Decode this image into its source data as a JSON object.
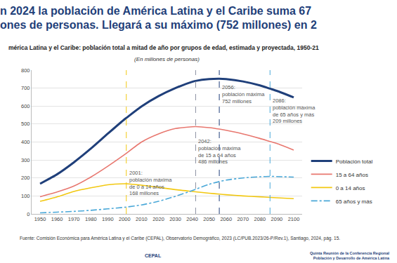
{
  "chart_data": {
    "type": "line",
    "title": [
      "n 2024 la población de América Latina y el Caribe suma 67",
      "ones de personas. Llegará a su máximo (752 millones) en 2"
    ],
    "subtitle": "mérica Latina y el Caribe: población total a mitad de año por grupos de edad, estimada y proyectada, 1950-21",
    "unit_note": "(En millones de personas)",
    "source": "Fuente: Comisión Económica para América Latina y el Caribe (CEPAL), Observatorio Demográfico, 2023 (LC/PUB.2023/26-P/Rev.1), Santiago, 2024, pág. 15.",
    "footer": [
      "CEPAL",
      "Quinta Reunión de la Conferencia Regional",
      "Población y Desarrollo de América Latina"
    ],
    "x": [
      1950,
      1960,
      1970,
      1980,
      1990,
      2000,
      2001,
      2010,
      2020,
      2030,
      2040,
      2042,
      2050,
      2056,
      2060,
      2070,
      2080,
      2086,
      2090,
      2100
    ],
    "series": [
      {
        "name": "Población total",
        "color": "#1f3f7a",
        "line_style": "solid",
        "values": [
          168,
          220,
          287,
          363,
          446,
          527,
          534,
          598,
          655,
          700,
          735,
          740,
          750,
          752,
          750,
          737,
          715,
          697,
          685,
          648
        ]
      },
      {
        "name": "15 a 64 años",
        "color": "#e8776f",
        "line_style": "solid",
        "values": [
          96,
          122,
          155,
          205,
          265,
          330,
          337,
          400,
          445,
          475,
          485,
          486,
          480,
          472,
          465,
          445,
          420,
          403,
          392,
          355
        ]
      },
      {
        "name": "0 a 14 años",
        "color": "#f2c811",
        "line_style": "solid",
        "values": [
          70,
          95,
          125,
          145,
          162,
          168,
          168,
          160,
          148,
          135,
          125,
          123,
          115,
          110,
          107,
          100,
          95,
          92,
          90,
          85
        ]
      },
      {
        "name": "65 años y más",
        "color": "#4aa8d8",
        "line_style": "dashdot",
        "values": [
          6,
          10,
          14,
          20,
          28,
          37,
          38,
          50,
          70,
          98,
          130,
          137,
          165,
          180,
          188,
          200,
          207,
          209,
          208,
          205
        ]
      }
    ],
    "annotations": [
      {
        "x": 2001,
        "color": "#f2c811",
        "lines": [
          "2001:",
          "población máxima",
          "de 0 a 14 años",
          "168 millones"
        ]
      },
      {
        "x": 2042,
        "color": "#8a8fa0",
        "lines": [
          "2042:",
          "población máxima",
          "de 15 a 64 años",
          "486 millones"
        ]
      },
      {
        "x": 2056,
        "color": "#1f3f7a",
        "lines": [
          "2056:",
          "población máxima",
          "752 millones"
        ]
      },
      {
        "x": 2086,
        "color": "#4aa8d8",
        "lines": [
          "2086:",
          "población máxima",
          "de 65 años y más",
          "209 millones"
        ]
      }
    ],
    "xlim": [
      1945,
      2105
    ],
    "xticks": [
      1950,
      1960,
      1970,
      1980,
      1990,
      2000,
      2010,
      2020,
      2030,
      2040,
      2050,
      2060,
      2070,
      2080,
      2090,
      2100
    ],
    "ylim": [
      0,
      800
    ],
    "yticks": [
      0,
      100,
      200,
      300,
      400,
      500,
      600,
      700,
      800
    ],
    "grid": true,
    "legend": "bottom right"
  }
}
